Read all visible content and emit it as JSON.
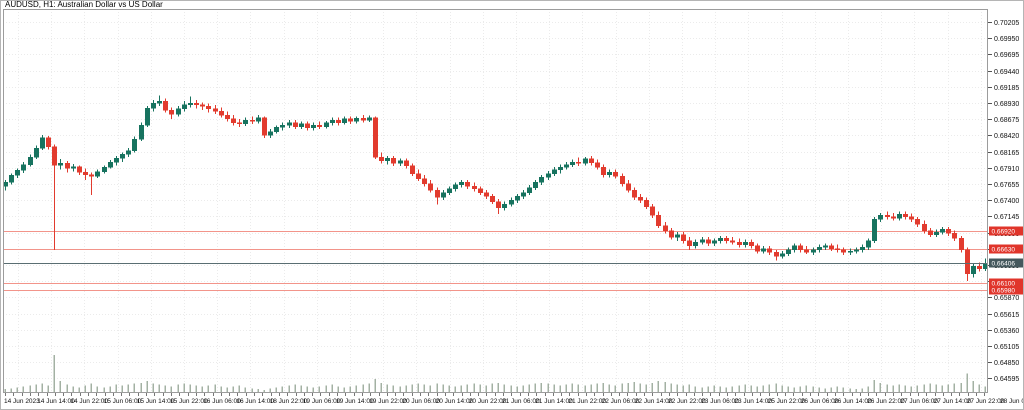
{
  "title": "AUDUSD, H1: Australian Dollar vs US Dollar",
  "chart_data": {
    "type": "candlestick",
    "symbol": "AUDUSD",
    "timeframe": "H1",
    "description": "Australian Dollar vs US Dollar",
    "bid_price": "0.66406",
    "price_axis": {
      "top_price": 0.7041,
      "bottom_price": 0.64366,
      "labels": [
        "0.70205",
        "0.69950",
        "0.69695",
        "0.69440",
        "0.69185",
        "0.68930",
        "0.68675",
        "0.68420",
        "0.68165",
        "0.67910",
        "0.67655",
        "0.67400",
        "0.67145",
        "0.66890",
        "0.66635",
        "0.66380",
        "0.66125",
        "0.65870",
        "0.65615",
        "0.65360",
        "0.65105",
        "0.64850",
        "0.64595"
      ]
    },
    "time_axis": {
      "labels": [
        "14 Jun 2023",
        "14 Jun 14:00",
        "14 Jun 22:00",
        "15 Jun 06:00",
        "15 Jun 14:00",
        "15 Jun 22:00",
        "16 Jun 06:00",
        "16 Jun 14:00",
        "18 Jun 22:00",
        "19 Jun 06:00",
        "19 Jun 14:00",
        "19 Jun 22:00",
        "20 Jun 06:00",
        "20 Jun 14:00",
        "20 Jun 22:00",
        "21 Jun 06:00",
        "21 Jun 14:00",
        "21 Jun 22:00",
        "22 Jun 06:00",
        "22 Jun 14:00",
        "22 Jun 22:00",
        "23 Jun 06:00",
        "23 Jun 14:00",
        "25 Jun 22:00",
        "26 Jun 06:00",
        "26 Jun 14:00",
        "26 Jun 22:00",
        "27 Jun 06:00",
        "27 Jun 14:00",
        "27 Jun 22:00",
        "28 Jun 06:00"
      ]
    },
    "levels": [
      {
        "label": "0.66920",
        "price": 0.6692,
        "type": "sr"
      },
      {
        "label": "0.66630",
        "price": 0.6663,
        "type": "sr"
      },
      {
        "label": "0.66406",
        "price": 0.66406,
        "type": "bid"
      },
      {
        "label": "0.66100",
        "price": 0.661,
        "type": "sr"
      },
      {
        "label": "0.65980",
        "price": 0.6598,
        "type": "sr"
      }
    ],
    "candles": [
      [
        0.6762,
        0.6772,
        0.6755,
        0.6768
      ],
      [
        0.6768,
        0.6782,
        0.6765,
        0.6779
      ],
      [
        0.6779,
        0.679,
        0.6775,
        0.6787
      ],
      [
        0.6787,
        0.68,
        0.6783,
        0.6796
      ],
      [
        0.6796,
        0.6812,
        0.6793,
        0.6808
      ],
      [
        0.6808,
        0.6826,
        0.6805,
        0.6822
      ],
      [
        0.6822,
        0.6843,
        0.6819,
        0.6838
      ],
      [
        0.6838,
        0.6841,
        0.682,
        0.6824
      ],
      [
        0.6824,
        0.6828,
        0.6662,
        0.6795
      ],
      [
        0.6795,
        0.6805,
        0.6788,
        0.6798
      ],
      [
        0.6798,
        0.6802,
        0.6784,
        0.679
      ],
      [
        0.679,
        0.6797,
        0.6785,
        0.6793
      ],
      [
        0.6793,
        0.6795,
        0.678,
        0.6784
      ],
      [
        0.6784,
        0.679,
        0.6772,
        0.678
      ],
      [
        0.678,
        0.6784,
        0.6748,
        0.6778
      ],
      [
        0.6778,
        0.6788,
        0.6775,
        0.6785
      ],
      [
        0.6785,
        0.6795,
        0.6782,
        0.6792
      ],
      [
        0.6792,
        0.6803,
        0.679,
        0.68
      ],
      [
        0.68,
        0.681,
        0.6795,
        0.6806
      ],
      [
        0.6806,
        0.6815,
        0.68,
        0.6812
      ],
      [
        0.6812,
        0.6822,
        0.6808,
        0.6818
      ],
      [
        0.6818,
        0.684,
        0.6815,
        0.6836
      ],
      [
        0.6836,
        0.6862,
        0.6833,
        0.6858
      ],
      [
        0.6858,
        0.6888,
        0.6855,
        0.6885
      ],
      [
        0.6885,
        0.6898,
        0.688,
        0.6893
      ],
      [
        0.6893,
        0.6905,
        0.6888,
        0.6896
      ],
      [
        0.6896,
        0.69,
        0.6878,
        0.6882
      ],
      [
        0.6882,
        0.6886,
        0.6868,
        0.6875
      ],
      [
        0.6875,
        0.6888,
        0.6872,
        0.6884
      ],
      [
        0.6884,
        0.6896,
        0.688,
        0.689
      ],
      [
        0.689,
        0.6903,
        0.6886,
        0.6893
      ],
      [
        0.6893,
        0.6898,
        0.6884,
        0.689
      ],
      [
        0.689,
        0.6894,
        0.6882,
        0.6888
      ],
      [
        0.6888,
        0.6892,
        0.6878,
        0.6884
      ],
      [
        0.6884,
        0.689,
        0.6876,
        0.688
      ],
      [
        0.688,
        0.6886,
        0.687,
        0.6874
      ],
      [
        0.6874,
        0.688,
        0.6864,
        0.6868
      ],
      [
        0.6868,
        0.6874,
        0.6858,
        0.6862
      ],
      [
        0.6862,
        0.6868,
        0.6855,
        0.686
      ],
      [
        0.686,
        0.687,
        0.6857,
        0.6866
      ],
      [
        0.6866,
        0.6872,
        0.686,
        0.6864
      ],
      [
        0.6864,
        0.6874,
        0.6861,
        0.687
      ],
      [
        0.687,
        0.6872,
        0.6838,
        0.6842
      ],
      [
        0.6842,
        0.6852,
        0.6838,
        0.6848
      ],
      [
        0.6848,
        0.6858,
        0.6845,
        0.6855
      ],
      [
        0.6855,
        0.6862,
        0.685,
        0.6858
      ],
      [
        0.6858,
        0.6866,
        0.6854,
        0.6862
      ],
      [
        0.6862,
        0.6866,
        0.6852,
        0.6856
      ],
      [
        0.6856,
        0.6864,
        0.6852,
        0.686
      ],
      [
        0.686,
        0.6864,
        0.685,
        0.6854
      ],
      [
        0.6854,
        0.6862,
        0.685,
        0.6858
      ],
      [
        0.6858,
        0.6864,
        0.6852,
        0.6856
      ],
      [
        0.6856,
        0.6865,
        0.6853,
        0.6862
      ],
      [
        0.6862,
        0.687,
        0.6858,
        0.6866
      ],
      [
        0.6866,
        0.687,
        0.6858,
        0.6862
      ],
      [
        0.6862,
        0.6872,
        0.6859,
        0.6868
      ],
      [
        0.6868,
        0.6872,
        0.686,
        0.6864
      ],
      [
        0.6864,
        0.6872,
        0.6861,
        0.6869
      ],
      [
        0.6869,
        0.6874,
        0.6862,
        0.6866
      ],
      [
        0.6866,
        0.6873,
        0.6863,
        0.687
      ],
      [
        0.687,
        0.6872,
        0.6805,
        0.6808
      ],
      [
        0.6808,
        0.6815,
        0.6798,
        0.6802
      ],
      [
        0.6802,
        0.681,
        0.6796,
        0.6806
      ],
      [
        0.6806,
        0.681,
        0.6794,
        0.6798
      ],
      [
        0.6798,
        0.6806,
        0.6794,
        0.6802
      ],
      [
        0.6802,
        0.6806,
        0.679,
        0.6794
      ],
      [
        0.6794,
        0.6798,
        0.6778,
        0.6782
      ],
      [
        0.6782,
        0.6788,
        0.677,
        0.6774
      ],
      [
        0.6774,
        0.678,
        0.6762,
        0.6766
      ],
      [
        0.6766,
        0.6772,
        0.6752,
        0.6756
      ],
      [
        0.6756,
        0.676,
        0.6733,
        0.6745
      ],
      [
        0.6745,
        0.6756,
        0.674,
        0.6752
      ],
      [
        0.6752,
        0.6762,
        0.6748,
        0.6758
      ],
      [
        0.6758,
        0.6768,
        0.6754,
        0.6764
      ],
      [
        0.6764,
        0.6772,
        0.676,
        0.6768
      ],
      [
        0.6768,
        0.6772,
        0.6758,
        0.6762
      ],
      [
        0.6762,
        0.6768,
        0.6754,
        0.6758
      ],
      [
        0.6758,
        0.6762,
        0.6748,
        0.6752
      ],
      [
        0.6752,
        0.6756,
        0.6742,
        0.6746
      ],
      [
        0.6746,
        0.675,
        0.6734,
        0.6738
      ],
      [
        0.6738,
        0.6742,
        0.6718,
        0.6728
      ],
      [
        0.6728,
        0.6738,
        0.6724,
        0.6734
      ],
      [
        0.6734,
        0.6744,
        0.673,
        0.674
      ],
      [
        0.674,
        0.675,
        0.6736,
        0.6746
      ],
      [
        0.6746,
        0.6756,
        0.6742,
        0.6752
      ],
      [
        0.6752,
        0.6764,
        0.6748,
        0.676
      ],
      [
        0.676,
        0.6772,
        0.6756,
        0.6768
      ],
      [
        0.6768,
        0.678,
        0.6764,
        0.6776
      ],
      [
        0.6776,
        0.6786,
        0.6772,
        0.6782
      ],
      [
        0.6782,
        0.6792,
        0.6778,
        0.6788
      ],
      [
        0.6788,
        0.6796,
        0.6782,
        0.6792
      ],
      [
        0.6792,
        0.68,
        0.6788,
        0.6796
      ],
      [
        0.6796,
        0.6804,
        0.6792,
        0.68
      ],
      [
        0.68,
        0.6807,
        0.6794,
        0.6798
      ],
      [
        0.6798,
        0.6808,
        0.6795,
        0.6805
      ],
      [
        0.6805,
        0.681,
        0.6795,
        0.6799
      ],
      [
        0.6799,
        0.6804,
        0.6788,
        0.6792
      ],
      [
        0.6792,
        0.6796,
        0.6776,
        0.678
      ],
      [
        0.678,
        0.6788,
        0.6776,
        0.6784
      ],
      [
        0.6784,
        0.6788,
        0.6774,
        0.6778
      ],
      [
        0.6778,
        0.6782,
        0.6762,
        0.6766
      ],
      [
        0.6766,
        0.6772,
        0.6752,
        0.6756
      ],
      [
        0.6756,
        0.676,
        0.674,
        0.6745
      ],
      [
        0.6745,
        0.675,
        0.6736,
        0.674
      ],
      [
        0.674,
        0.6744,
        0.6726,
        0.673
      ],
      [
        0.673,
        0.6734,
        0.6712,
        0.6716
      ],
      [
        0.6716,
        0.6722,
        0.6696,
        0.67
      ],
      [
        0.67,
        0.6706,
        0.6688,
        0.6692
      ],
      [
        0.6692,
        0.6696,
        0.6678,
        0.6682
      ],
      [
        0.6682,
        0.669,
        0.6676,
        0.6686
      ],
      [
        0.6686,
        0.669,
        0.6672,
        0.6676
      ],
      [
        0.6676,
        0.6682,
        0.6662,
        0.6668
      ],
      [
        0.6668,
        0.6678,
        0.6664,
        0.6674
      ],
      [
        0.6674,
        0.6682,
        0.667,
        0.6678
      ],
      [
        0.6678,
        0.6682,
        0.6668,
        0.6672
      ],
      [
        0.6672,
        0.668,
        0.6668,
        0.6676
      ],
      [
        0.6676,
        0.6684,
        0.6672,
        0.668
      ],
      [
        0.668,
        0.6684,
        0.6672,
        0.6676
      ],
      [
        0.6676,
        0.6682,
        0.667,
        0.6674
      ],
      [
        0.6674,
        0.668,
        0.6666,
        0.667
      ],
      [
        0.667,
        0.6678,
        0.6666,
        0.6674
      ],
      [
        0.6674,
        0.6678,
        0.6664,
        0.6668
      ],
      [
        0.6668,
        0.6672,
        0.6656,
        0.666
      ],
      [
        0.666,
        0.6668,
        0.6656,
        0.6664
      ],
      [
        0.6664,
        0.6668,
        0.6654,
        0.6658
      ],
      [
        0.6658,
        0.6662,
        0.6645,
        0.6652
      ],
      [
        0.6652,
        0.666,
        0.6648,
        0.6656
      ],
      [
        0.6656,
        0.6666,
        0.6652,
        0.6662
      ],
      [
        0.6662,
        0.6672,
        0.6658,
        0.6668
      ],
      [
        0.6668,
        0.6672,
        0.6658,
        0.6662
      ],
      [
        0.6662,
        0.6668,
        0.6655,
        0.6658
      ],
      [
        0.6658,
        0.6666,
        0.6654,
        0.6662
      ],
      [
        0.6662,
        0.667,
        0.6658,
        0.6666
      ],
      [
        0.6666,
        0.6672,
        0.6662,
        0.6668
      ],
      [
        0.6668,
        0.6672,
        0.666,
        0.6664
      ],
      [
        0.6664,
        0.667,
        0.6658,
        0.6662
      ],
      [
        0.6662,
        0.6666,
        0.6654,
        0.6658
      ],
      [
        0.6658,
        0.6664,
        0.6654,
        0.666
      ],
      [
        0.666,
        0.6666,
        0.6656,
        0.6662
      ],
      [
        0.6662,
        0.667,
        0.6658,
        0.6666
      ],
      [
        0.6666,
        0.668,
        0.6662,
        0.6676
      ],
      [
        0.6676,
        0.6714,
        0.6673,
        0.671
      ],
      [
        0.671,
        0.672,
        0.6706,
        0.6716
      ],
      [
        0.6716,
        0.6722,
        0.671,
        0.6714
      ],
      [
        0.6714,
        0.672,
        0.6708,
        0.6712
      ],
      [
        0.6712,
        0.6722,
        0.6708,
        0.6718
      ],
      [
        0.6718,
        0.6722,
        0.671,
        0.6714
      ],
      [
        0.6714,
        0.6719,
        0.6706,
        0.671
      ],
      [
        0.671,
        0.6714,
        0.6698,
        0.6702
      ],
      [
        0.6702,
        0.6708,
        0.6688,
        0.6692
      ],
      [
        0.6692,
        0.6696,
        0.6682,
        0.6686
      ],
      [
        0.6686,
        0.6694,
        0.6682,
        0.669
      ],
      [
        0.669,
        0.6698,
        0.6686,
        0.6694
      ],
      [
        0.6694,
        0.6698,
        0.6684,
        0.6688
      ],
      [
        0.6688,
        0.6692,
        0.6676,
        0.668
      ],
      [
        0.668,
        0.6684,
        0.6658,
        0.6662
      ],
      [
        0.6662,
        0.6666,
        0.6613,
        0.6624
      ],
      [
        0.6624,
        0.664,
        0.6618,
        0.6636
      ],
      [
        0.6636,
        0.6642,
        0.6628,
        0.6632
      ],
      [
        0.6632,
        0.6648,
        0.6629,
        0.66406
      ]
    ],
    "volumes": [
      3,
      4,
      5,
      6,
      7,
      8,
      9,
      7,
      40,
      12,
      8,
      6,
      5,
      7,
      9,
      6,
      5,
      6,
      8,
      7,
      8,
      9,
      10,
      12,
      9,
      8,
      7,
      6,
      8,
      9,
      8,
      7,
      6,
      7,
      8,
      6,
      5,
      6,
      7,
      5,
      4,
      3,
      2,
      4,
      5,
      6,
      7,
      8,
      7,
      6,
      5,
      6,
      7,
      8,
      6,
      5,
      6,
      7,
      8,
      9,
      14,
      10,
      8,
      7,
      6,
      7,
      8,
      9,
      8,
      7,
      9,
      8,
      7,
      6,
      7,
      8,
      9,
      8,
      7,
      9,
      10,
      8,
      7,
      6,
      7,
      8,
      9,
      10,
      9,
      8,
      7,
      8,
      9,
      8,
      7,
      8,
      9,
      10,
      8,
      7,
      9,
      10,
      11,
      9,
      8,
      10,
      12,
      11,
      9,
      8,
      7,
      8,
      6,
      5,
      6,
      7,
      6,
      5,
      6,
      7,
      8,
      7,
      6,
      7,
      8,
      9,
      7,
      6,
      5,
      6,
      7,
      6,
      5,
      4,
      5,
      6,
      5,
      4,
      3,
      4,
      6,
      13,
      10,
      8,
      7,
      8,
      7,
      6,
      7,
      8,
      9,
      8,
      7,
      8,
      9,
      10,
      20,
      12,
      8,
      6
    ],
    "colors": {
      "background": "#ffffff",
      "bull": "#17735f",
      "bear": "#e23b2e",
      "grid": "#ebebeb",
      "level_line": "#f2948a",
      "level_badge": "#e0352b",
      "bid_line": "#5a6e72",
      "bid_badge": "#44585d",
      "badge_text": "#ffffff",
      "volume": "#a3b1a3",
      "border": "#9c9c9c",
      "axis_text": "#111111"
    }
  }
}
